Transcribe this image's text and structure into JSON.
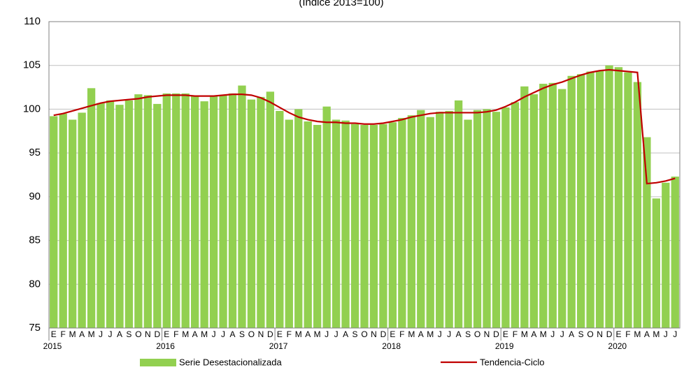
{
  "chart_data": {
    "type": "bar_line",
    "subtitle": "(Índice 2013=100)",
    "categories": [
      "E",
      "F",
      "M",
      "A",
      "M",
      "J",
      "J",
      "A",
      "S",
      "O",
      "N",
      "D",
      "E",
      "F",
      "M",
      "A",
      "M",
      "J",
      "J",
      "A",
      "S",
      "O",
      "N",
      "D",
      "E",
      "F",
      "M",
      "A",
      "M",
      "J",
      "J",
      "A",
      "S",
      "O",
      "N",
      "D",
      "E",
      "F",
      "M",
      "A",
      "M",
      "J",
      "J",
      "A",
      "S",
      "O",
      "N",
      "D",
      "E",
      "F",
      "M",
      "A",
      "M",
      "J",
      "J",
      "A",
      "S",
      "O",
      "N",
      "D",
      "E",
      "F",
      "M",
      "A",
      "M",
      "J",
      "J"
    ],
    "years": [
      "2015",
      "2016",
      "2017",
      "2018",
      "2019",
      "2020"
    ],
    "series": [
      {
        "name": "Serie Desestacionalizada",
        "type": "bar",
        "color": "#92d050",
        "values": [
          99.2,
          99.5,
          98.8,
          99.6,
          102.4,
          100.7,
          101.0,
          100.5,
          101.0,
          101.7,
          101.6,
          100.6,
          101.8,
          101.8,
          101.8,
          101.5,
          100.9,
          101.5,
          101.6,
          101.8,
          102.7,
          101.1,
          101.4,
          102.0,
          99.8,
          98.8,
          100.0,
          98.6,
          98.2,
          100.3,
          98.8,
          98.7,
          98.3,
          98.2,
          98.2,
          98.3,
          98.5,
          99.0,
          99.3,
          99.9,
          99.1,
          99.7,
          99.8,
          101.0,
          98.8,
          99.9,
          100.0,
          99.7,
          100.2,
          100.8,
          102.6,
          101.7,
          102.9,
          103.0,
          102.3,
          103.8,
          104.0,
          104.3,
          104.4,
          105.0,
          104.8,
          104.2,
          103.1,
          96.8,
          89.8,
          91.6,
          92.3
        ]
      },
      {
        "name": "Tendencia-Ciclo",
        "type": "line",
        "color": "#c00000",
        "values": [
          99.3,
          99.5,
          99.8,
          100.1,
          100.4,
          100.7,
          100.9,
          101.0,
          101.1,
          101.2,
          101.4,
          101.5,
          101.6,
          101.6,
          101.6,
          101.5,
          101.5,
          101.5,
          101.6,
          101.7,
          101.7,
          101.6,
          101.3,
          100.8,
          100.2,
          99.6,
          99.1,
          98.8,
          98.6,
          98.5,
          98.5,
          98.4,
          98.4,
          98.3,
          98.3,
          98.4,
          98.6,
          98.8,
          99.1,
          99.3,
          99.5,
          99.6,
          99.6,
          99.6,
          99.6,
          99.6,
          99.7,
          99.9,
          100.3,
          100.8,
          101.4,
          101.9,
          102.4,
          102.8,
          103.1,
          103.5,
          103.9,
          104.2,
          104.4,
          104.5,
          104.4,
          104.3,
          104.2,
          91.5,
          91.6,
          91.8,
          92.1
        ]
      }
    ],
    "ylim": [
      75,
      110
    ],
    "yticks": [
      75,
      80,
      85,
      90,
      95,
      100,
      105,
      110
    ],
    "grid": true
  }
}
